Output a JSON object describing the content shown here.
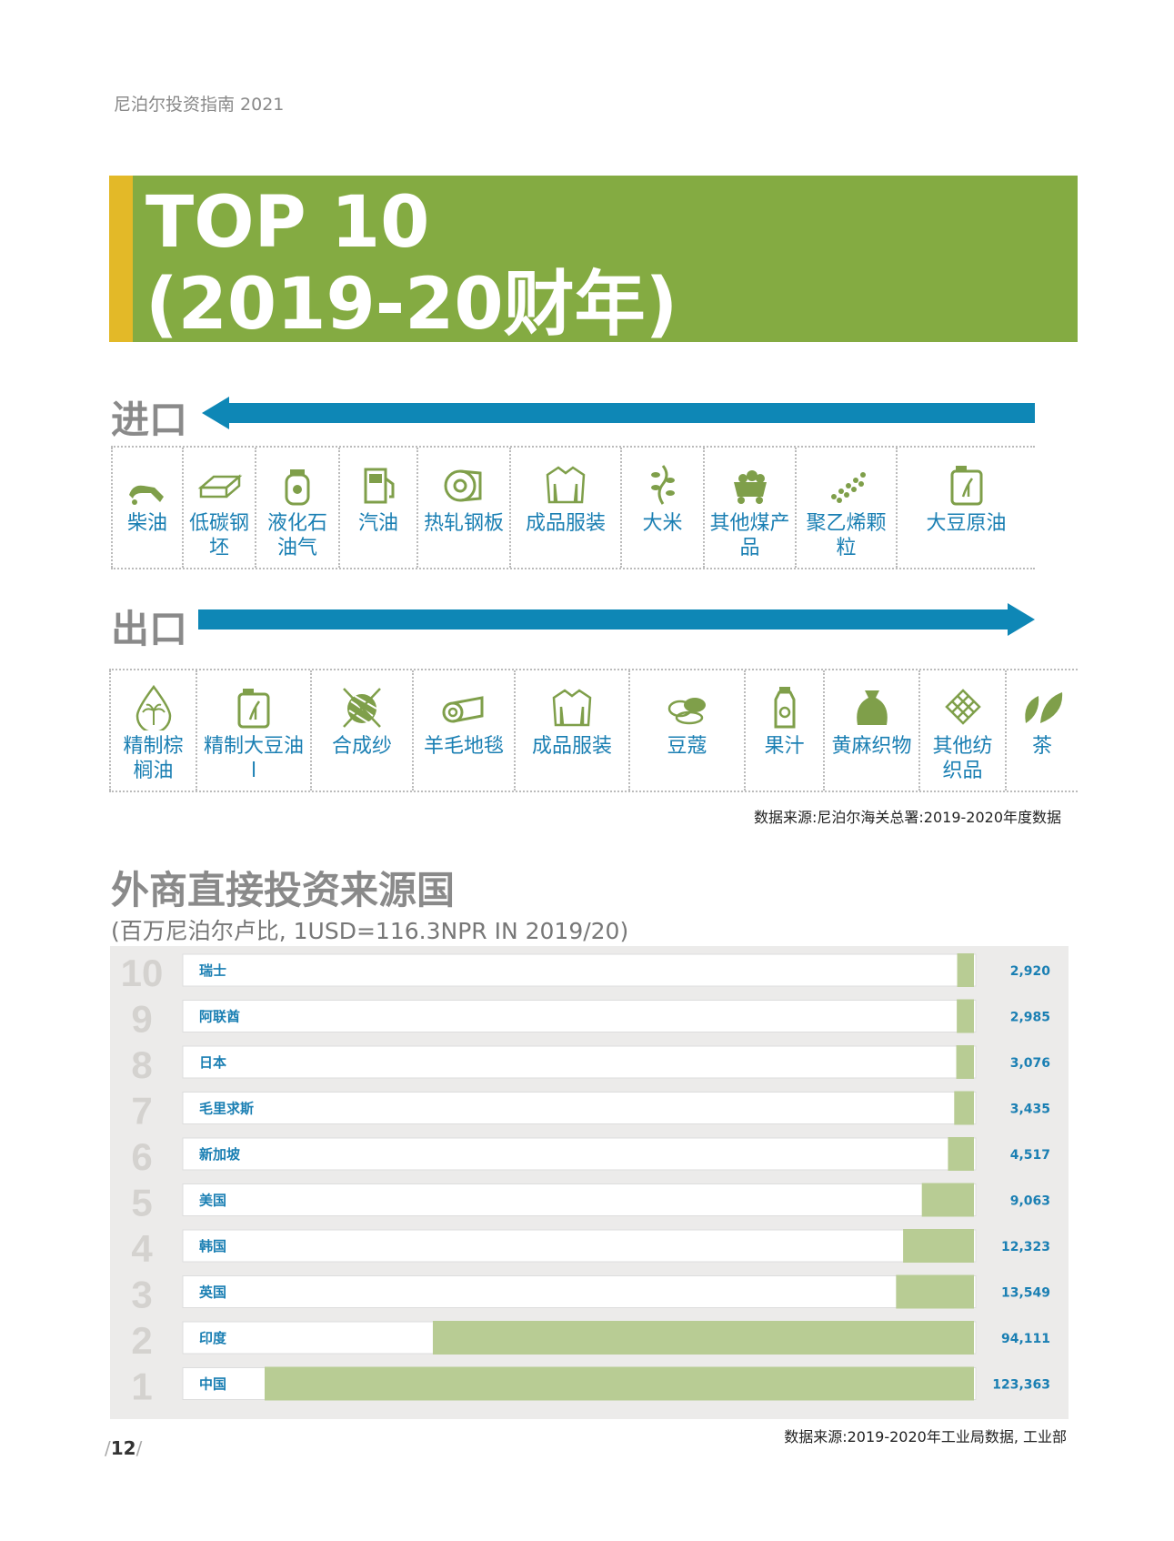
{
  "header": {
    "running_title": "尼泊尔投资指南 2021"
  },
  "banner": {
    "line1": "TOP 10",
    "line2": "(2019-20财年)",
    "colors": {
      "green": "#84ab42",
      "accent": "#e3b928"
    }
  },
  "imports": {
    "label": "进口",
    "items": [
      {
        "icon": "fuel-nozzle-icon",
        "label": "柴油"
      },
      {
        "icon": "steel-billet-icon",
        "label": "低碳钢坯"
      },
      {
        "icon": "gas-cylinder-icon",
        "label": "液化石油气"
      },
      {
        "icon": "fuel-pump-icon",
        "label": "汽油"
      },
      {
        "icon": "steel-coil-icon",
        "label": "热轧钢板"
      },
      {
        "icon": "sweater-icon",
        "label": "成品服装"
      },
      {
        "icon": "rice-icon",
        "label": "大米"
      },
      {
        "icon": "coal-cart-icon",
        "label": "其他煤产品"
      },
      {
        "icon": "pellets-icon",
        "label": "聚乙烯颗粒"
      },
      {
        "icon": "oil-can-icon",
        "label": "大豆原油"
      }
    ]
  },
  "exports": {
    "label": "出口",
    "items": [
      {
        "icon": "palm-drop-icon",
        "label": "精制棕榈油"
      },
      {
        "icon": "oil-can-icon",
        "label": "精制大豆油l"
      },
      {
        "icon": "yarn-ball-icon",
        "label": "合成纱"
      },
      {
        "icon": "carpet-roll-icon",
        "label": "羊毛地毯"
      },
      {
        "icon": "sweater-icon",
        "label": "成品服装"
      },
      {
        "icon": "cardamom-icon",
        "label": "豆蔻"
      },
      {
        "icon": "juice-bottle-icon",
        "label": "果汁"
      },
      {
        "icon": "jute-sack-icon",
        "label": "黄麻织物"
      },
      {
        "icon": "textile-weave-icon",
        "label": "其他纺织品"
      },
      {
        "icon": "tea-leaf-icon",
        "label": "茶"
      }
    ]
  },
  "trade_source": "数据来源:尼泊尔海关总署:2019-2020年度数据",
  "fdi": {
    "title": "外商直接投资来源国",
    "subtitle": "(百万尼泊尔卢比, 1USD=116.3NPR IN 2019/20)",
    "source": "数据来源:2019-2020年工业局数据, 工业部"
  },
  "chart_data": {
    "type": "bar",
    "orientation": "horizontal",
    "ranks": [
      "10",
      "9",
      "8",
      "7",
      "6",
      "5",
      "4",
      "3",
      "2",
      "1"
    ],
    "categories": [
      "瑞士",
      "阿联酋",
      "日本",
      "毛里求斯",
      "新加坡",
      "美国",
      "韩国",
      "英国",
      "印度",
      "中国"
    ],
    "values": [
      2920,
      2985,
      3076,
      3435,
      4517,
      9063,
      12323,
      13549,
      94111,
      123363
    ],
    "value_labels": [
      "2,920",
      "2,985",
      "3,076",
      "3,435",
      "4,517",
      "9,063",
      "12,323",
      "13,549",
      "94,111",
      "123,363"
    ],
    "bar_color": "#b8cc94",
    "bars_anchored": "right"
  },
  "footer": {
    "page_number": "12"
  },
  "colors": {
    "blue": "#0e87b6",
    "icon_green": "#7f9f4a",
    "label_blue": "#1a7fb3"
  }
}
